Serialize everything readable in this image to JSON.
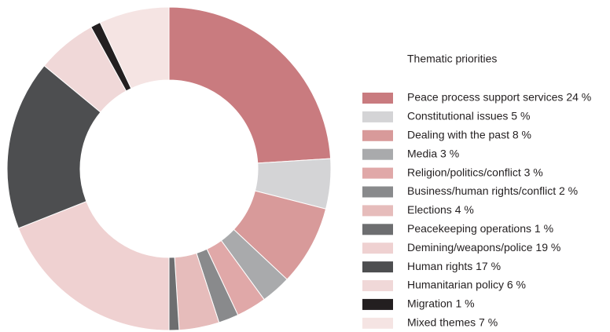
{
  "chart_data": {
    "type": "donut",
    "title": "Thematic priorities",
    "categories": [
      "Peace process support services 24 %",
      "Constitutional issues 5 %",
      "Dealing with the past 8 %",
      "Media 3 %",
      "Religion/politics/conflict 3 %",
      "Business/human rights/conflict 2 %",
      "Elections 4 %",
      "Peacekeeping operations 1 %",
      "Demining/weapons/police 19 %",
      "Human rights 17 %",
      "Humanitarian policy 6 %",
      "Migration 1 %",
      "Mixed themes 7 %"
    ],
    "values": [
      24,
      5,
      8,
      3,
      3,
      2,
      4,
      1,
      19,
      17,
      6,
      1,
      7
    ],
    "colors": [
      "#c97b7f",
      "#d4d4d6",
      "#d89a9a",
      "#a9aaac",
      "#e0a8a8",
      "#898a8c",
      "#e6bcbb",
      "#6d6e70",
      "#efd1d1",
      "#4d4e50",
      "#f0d8d8",
      "#231f20",
      "#f5e4e3"
    ]
  }
}
